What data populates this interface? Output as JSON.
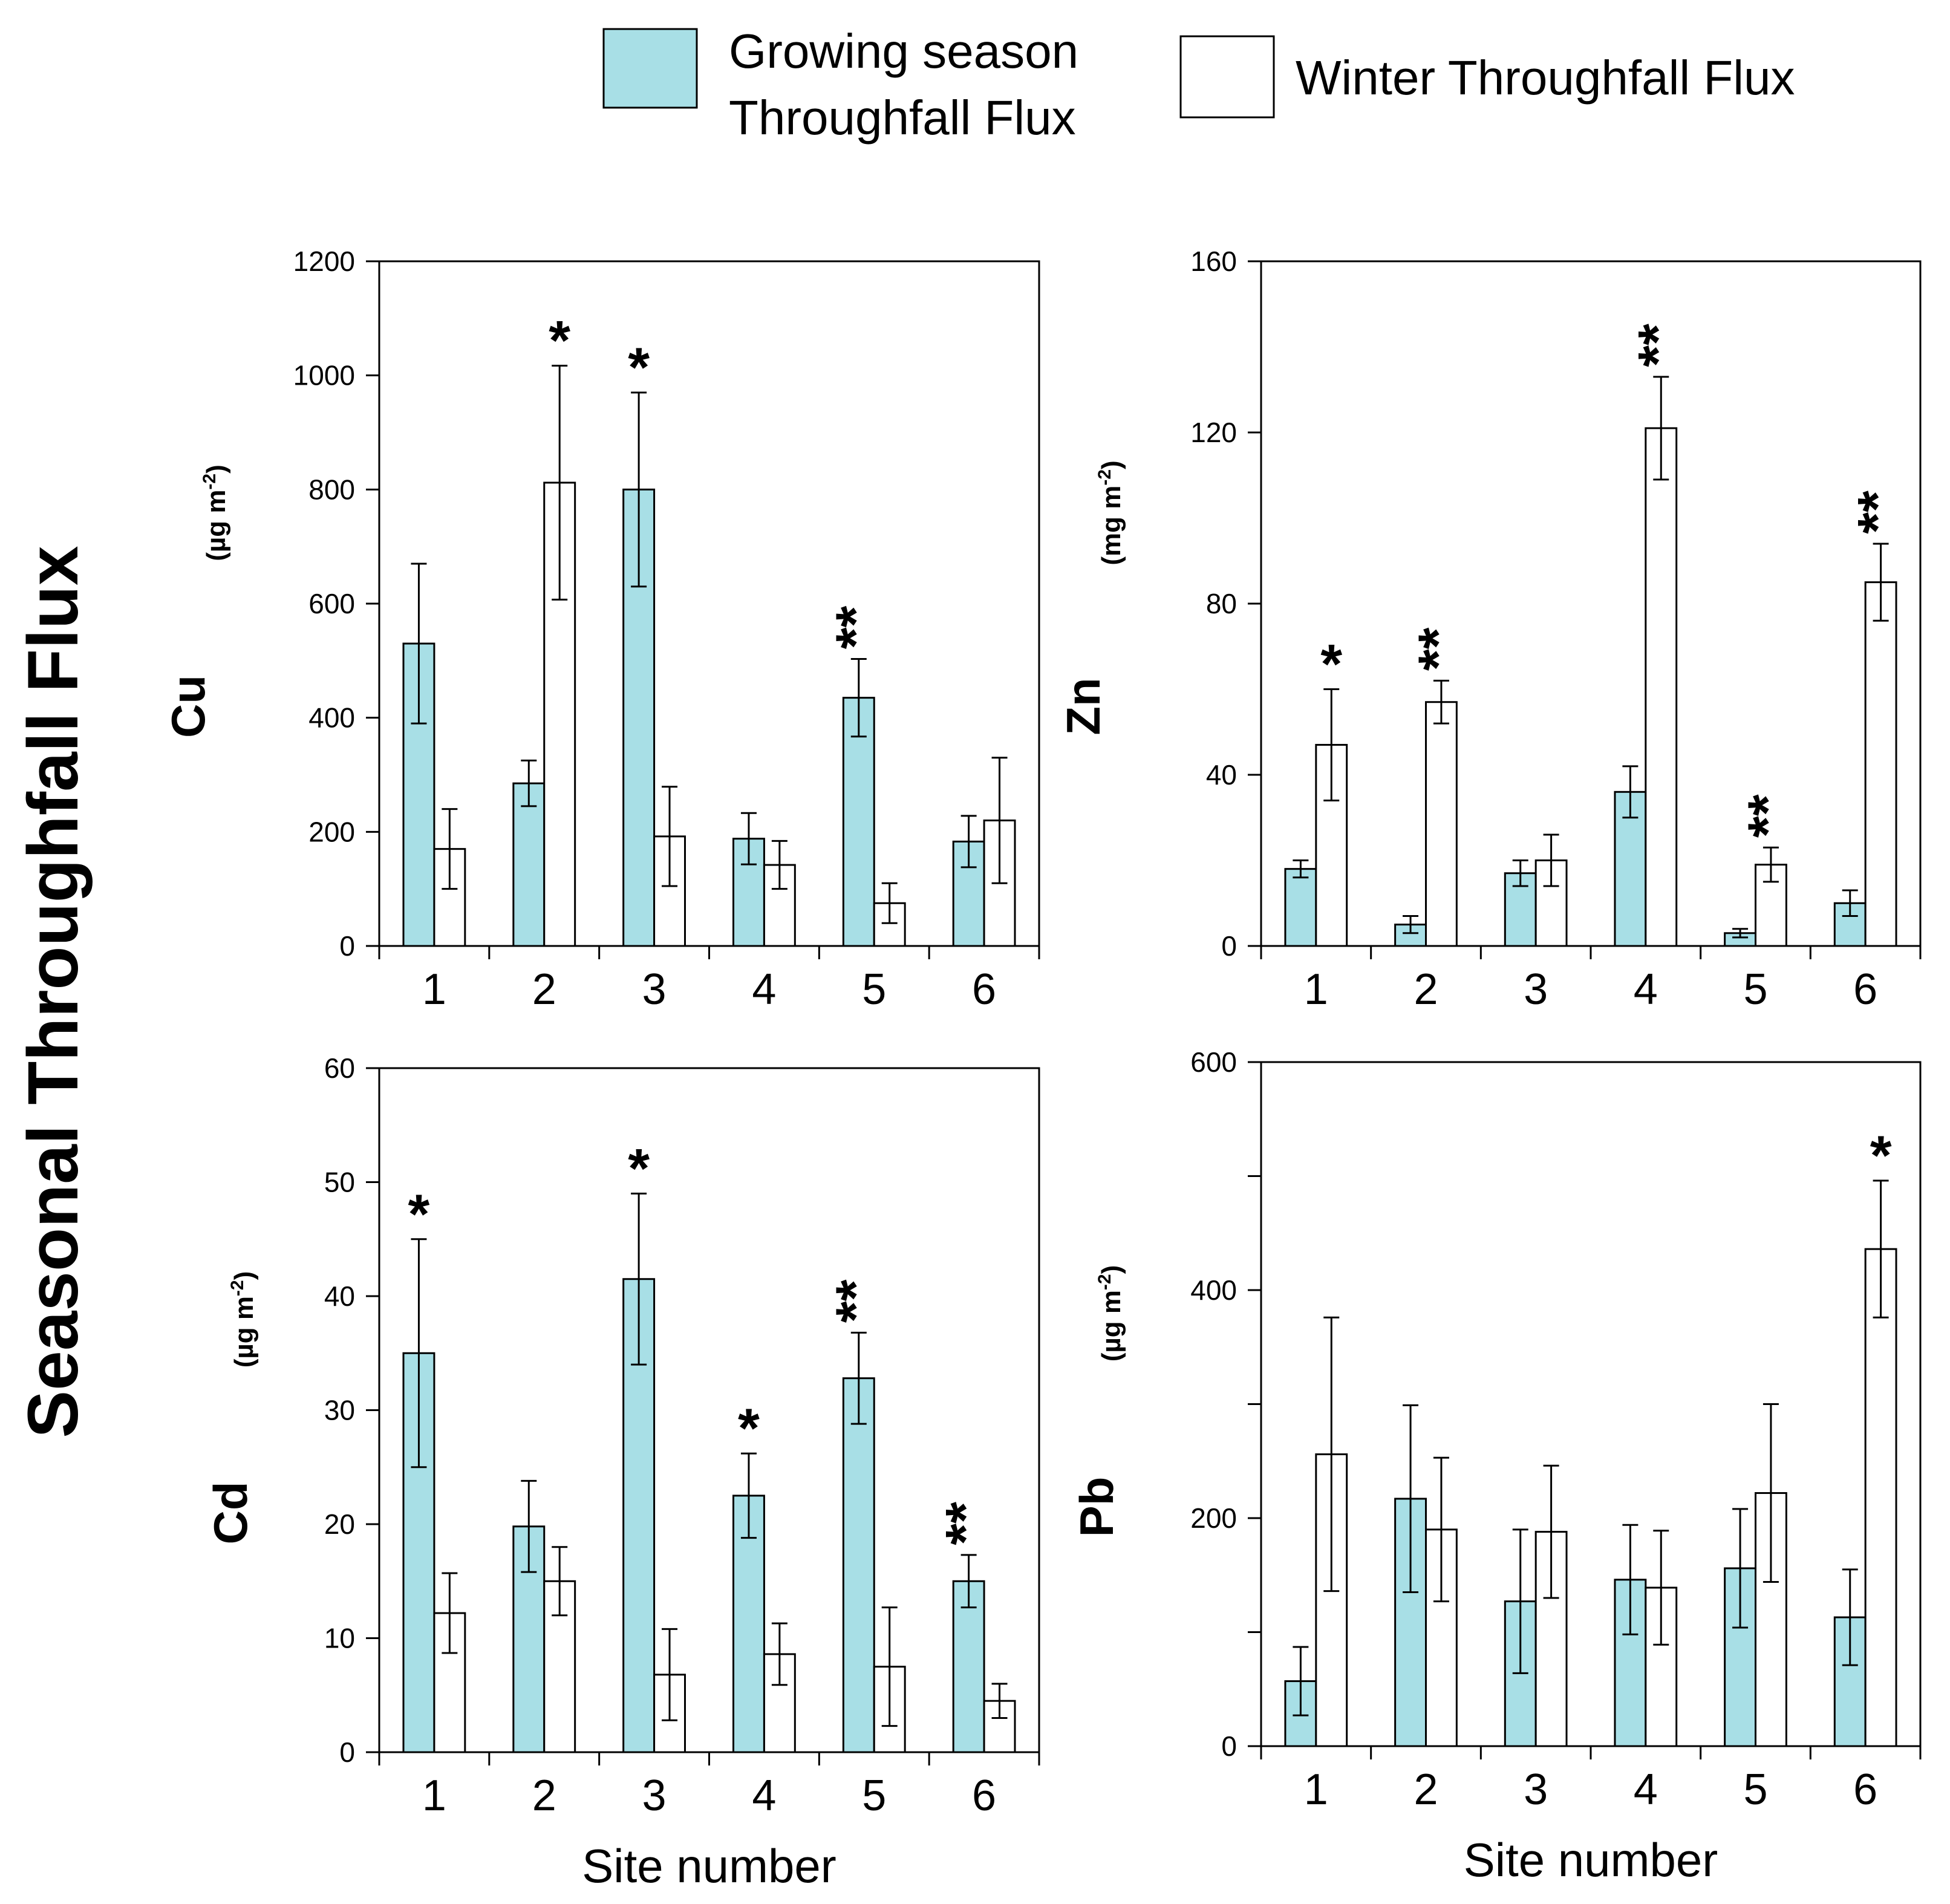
{
  "figure_title": "Seasonal Throughfall Flux",
  "legend": {
    "growing": {
      "line1": "Growing season",
      "line2": "Throughfall Flux",
      "color": "#a8dfe6"
    },
    "winter": {
      "label": "Winter Throughfall Flux",
      "color": "#ffffff"
    }
  },
  "chart_data": [
    {
      "type": "bar",
      "element": "Cu",
      "unit": "(µg m",
      "unit_exp": "-2",
      "categories": [
        "1",
        "2",
        "3",
        "4",
        "5",
        "6"
      ],
      "series": [
        {
          "name": "Growing season Throughfall Flux",
          "values": [
            530,
            285,
            800,
            188,
            435,
            183
          ],
          "errors": [
            140,
            40,
            170,
            45,
            68,
            45
          ]
        },
        {
          "name": "Winter Throughfall Flux",
          "values": [
            170,
            812,
            192,
            142,
            75,
            220
          ],
          "errors": [
            70,
            205,
            87,
            42,
            35,
            110
          ]
        }
      ],
      "significance": [
        "",
        "*",
        "*",
        "",
        "**",
        ""
      ],
      "significance_on": [
        "",
        "winter",
        "growing",
        "",
        "growing",
        ""
      ],
      "ylim": [
        0,
        1200
      ],
      "yticks": [
        "0",
        "200",
        "400",
        "600",
        "800",
        "1000",
        "1200"
      ],
      "xlabel": ""
    },
    {
      "type": "bar",
      "element": "Zn",
      "unit": "(mg m",
      "unit_exp": "-2",
      "categories": [
        "1",
        "2",
        "3",
        "4",
        "5",
        "6"
      ],
      "series": [
        {
          "name": "Growing season Throughfall Flux",
          "values": [
            18,
            5,
            17,
            36,
            3,
            10
          ],
          "errors": [
            2,
            2,
            3,
            6,
            1,
            3
          ]
        },
        {
          "name": "Winter Throughfall Flux",
          "values": [
            47,
            57,
            20,
            121,
            19,
            85
          ],
          "errors": [
            13,
            5,
            6,
            12,
            4,
            9
          ]
        }
      ],
      "significance": [
        "*",
        "**",
        "",
        "**",
        "**",
        "**"
      ],
      "significance_on": [
        "winter",
        "winter",
        "",
        "winter",
        "winter",
        "winter"
      ],
      "ylim": [
        0,
        160
      ],
      "yticks": [
        "0",
        "40",
        "80",
        "120",
        "160"
      ],
      "xlabel": ""
    },
    {
      "type": "bar",
      "element": "Cd",
      "unit": "(µg m",
      "unit_exp": "-2",
      "categories": [
        "1",
        "2",
        "3",
        "4",
        "5",
        "6"
      ],
      "series": [
        {
          "name": "Growing season Throughfall Flux",
          "values": [
            35,
            19.8,
            41.5,
            22.5,
            32.8,
            15
          ],
          "errors": [
            10,
            4,
            7.5,
            3.7,
            4,
            2.3
          ]
        },
        {
          "name": "Winter Throughfall Flux",
          "values": [
            12.2,
            15,
            6.8,
            8.6,
            7.5,
            4.5
          ],
          "errors": [
            3.5,
            3,
            4,
            2.7,
            5.2,
            1.5
          ]
        }
      ],
      "significance": [
        "*",
        "",
        "*",
        "*",
        "**",
        "**"
      ],
      "significance_on": [
        "growing",
        "",
        "growing",
        "growing",
        "growing",
        "growing"
      ],
      "ylim": [
        0,
        60
      ],
      "yticks": [
        "0",
        "10",
        "20",
        "30",
        "40",
        "50",
        "60"
      ],
      "xlabel": "Site number"
    },
    {
      "type": "bar",
      "element": "Pb",
      "unit": "(µg m",
      "unit_exp": "-2",
      "categories": [
        "1",
        "2",
        "3",
        "4",
        "5",
        "6"
      ],
      "series": [
        {
          "name": "Growing season Throughfall Flux",
          "values": [
            57,
            217,
            127,
            146,
            156,
            113
          ],
          "errors": [
            30,
            82,
            63,
            48,
            52,
            42
          ]
        },
        {
          "name": "Winter Throughfall Flux",
          "values": [
            256,
            190,
            188,
            139,
            222,
            436
          ],
          "errors": [
            120,
            63,
            58,
            50,
            78,
            60
          ]
        }
      ],
      "significance": [
        "",
        "",
        "",
        "",
        "",
        "*"
      ],
      "significance_on": [
        "",
        "",
        "",
        "",
        "",
        "winter"
      ],
      "ylim": [
        0,
        600
      ],
      "yticks": [
        "0",
        "200",
        "400",
        "600"
      ],
      "minor_ticks": true,
      "xlabel": "Site number"
    }
  ]
}
